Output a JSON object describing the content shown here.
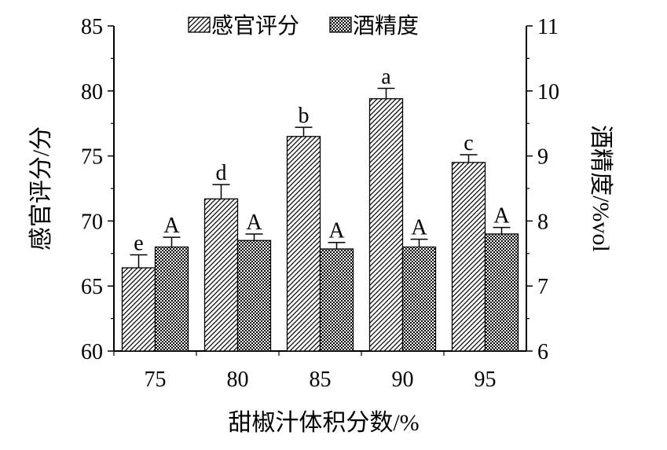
{
  "chart_data": {
    "type": "bar",
    "categories": [
      "75",
      "80",
      "85",
      "90",
      "95"
    ],
    "xlabel": "甜椒汁体积分数/%",
    "ylabel": "感官评分/分",
    "y2label": "酒精度/%vol",
    "ylim": [
      60,
      85
    ],
    "y2lim": [
      6,
      11
    ],
    "yticks": [
      "60",
      "65",
      "70",
      "75",
      "80",
      "85"
    ],
    "y2ticks": [
      "6",
      "7",
      "8",
      "9",
      "10",
      "11"
    ],
    "legend_position": "top",
    "grid": false,
    "series": [
      {
        "name": "感官评分",
        "axis": "left",
        "pattern": "diagonal-hatch",
        "values": [
          66.4,
          71.7,
          76.5,
          79.4,
          74.5
        ],
        "errors": [
          1.0,
          1.1,
          0.7,
          0.8,
          0.6
        ],
        "labels": [
          "e",
          "d",
          "b",
          "a",
          "c"
        ]
      },
      {
        "name": "酒精度",
        "axis": "right",
        "pattern": "crosshatch-dots",
        "values": [
          7.6,
          7.7,
          7.57,
          7.6,
          7.8
        ],
        "errors": [
          0.15,
          0.1,
          0.1,
          0.12,
          0.1
        ],
        "labels": [
          "A",
          "A",
          "A",
          "A",
          "A"
        ]
      }
    ]
  }
}
